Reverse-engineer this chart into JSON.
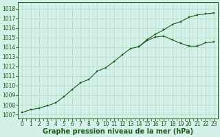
{
  "x": [
    0,
    1,
    2,
    3,
    4,
    5,
    6,
    7,
    8,
    9,
    10,
    11,
    12,
    13,
    14,
    15,
    16,
    17,
    18,
    19,
    20,
    21,
    22,
    23
  ],
  "y": [
    1007.2,
    1007.5,
    1007.65,
    1007.9,
    1008.2,
    1008.85,
    1009.6,
    1010.3,
    1010.65,
    1011.5,
    1011.85,
    1012.5,
    1013.2,
    1013.85,
    1014.05,
    1014.7,
    1015.05,
    1015.15,
    1014.75,
    1014.4,
    1014.1,
    1014.1,
    1014.45,
    1014.55
  ],
  "y2_x": [
    14,
    15,
    16,
    17,
    18,
    19,
    20,
    21,
    22,
    23
  ],
  "y2_y": [
    1014.05,
    1014.8,
    1015.35,
    1015.8,
    1016.35,
    1016.65,
    1017.1,
    1017.35,
    1017.45,
    1017.55
  ],
  "yticks": [
    1007,
    1008,
    1009,
    1010,
    1011,
    1012,
    1013,
    1014,
    1015,
    1016,
    1017,
    1018
  ],
  "xticks": [
    0,
    1,
    2,
    3,
    4,
    5,
    6,
    7,
    8,
    9,
    10,
    11,
    12,
    13,
    14,
    15,
    16,
    17,
    18,
    19,
    20,
    21,
    22,
    23
  ],
  "line_color": "#1a5c1a",
  "bg_color": "#d4f0e8",
  "grid_color": "#b0d8c8",
  "xlabel": "Graphe pression niveau de la mer (hPa)",
  "xlabel_fontsize": 7,
  "tick_fontsize": 5.5
}
